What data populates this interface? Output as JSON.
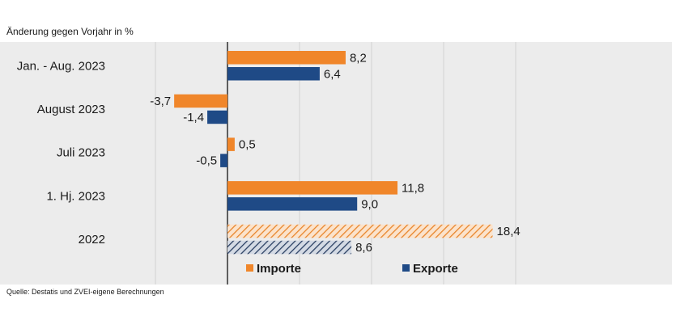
{
  "chart_data": {
    "type": "bar",
    "orientation": "horizontal",
    "subtitle": "Änderung gegen Vorjahr in %",
    "categories": [
      "Jan. - Aug. 2023",
      "August 2023",
      "Juli 2023",
      "1. Hj. 2023",
      "2022"
    ],
    "series": [
      {
        "name": "Importe",
        "values": [
          8.2,
          -3.7,
          0.5,
          11.8,
          18.4
        ],
        "labels": [
          "8,2",
          "-3,7",
          "0,5",
          "11,8",
          "18,4"
        ],
        "color": "#f0862a"
      },
      {
        "name": "Exporte",
        "values": [
          6.4,
          -1.4,
          -0.5,
          9.0,
          8.6
        ],
        "labels": [
          "6,4",
          "-1,4",
          "-0,5",
          "9,0",
          "8,6"
        ],
        "color": "#1f4a86"
      }
    ],
    "hatched_categories": [
      "2022"
    ],
    "xlim": [
      -6,
      20
    ],
    "grid": true,
    "legend": "bottom-center",
    "source": "Quelle: Destatis und ZVEI-eigene Berechnungen"
  }
}
